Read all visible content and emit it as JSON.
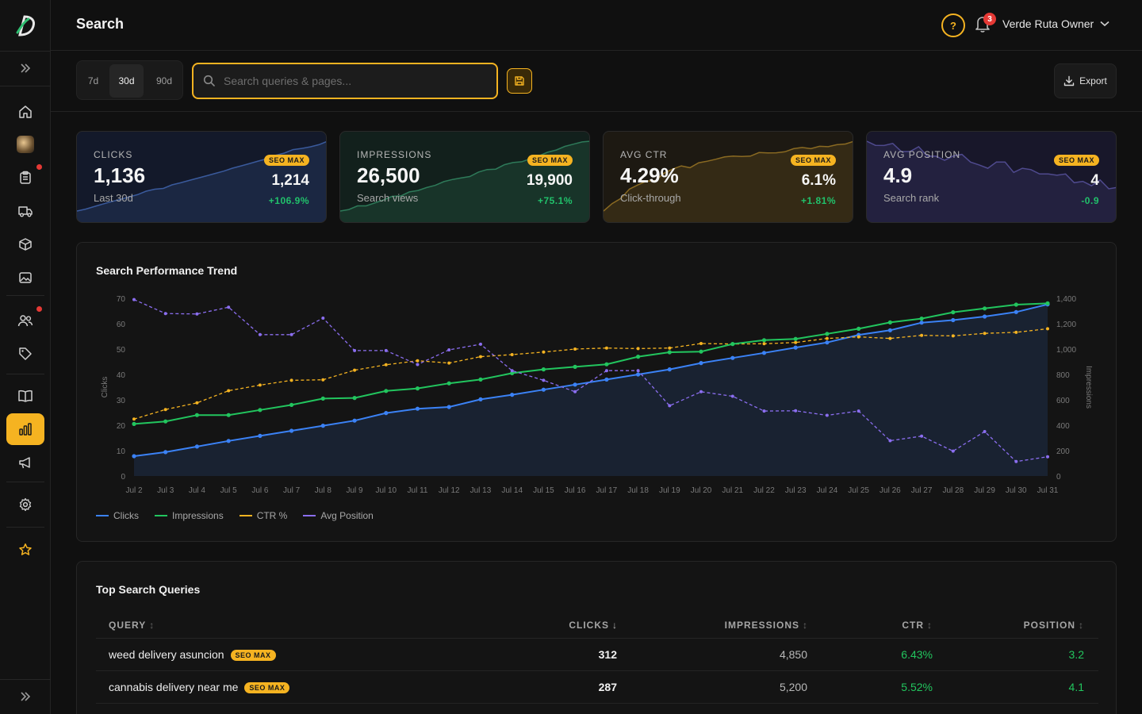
{
  "header": {
    "title": "Search",
    "help_glyph": "?",
    "notifications_count": "3",
    "user_name": "Verde Ruta Owner"
  },
  "toolbar": {
    "ranges": [
      {
        "label": "7d",
        "active": false
      },
      {
        "label": "30d",
        "active": true
      },
      {
        "label": "90d",
        "active": false
      }
    ],
    "search_placeholder": "Search queries & pages...",
    "search_value": "",
    "export_label": "Export"
  },
  "sidebar": {
    "items": [
      {
        "icon": "home-icon",
        "active": false
      },
      {
        "icon": "avatar-image",
        "active": false
      },
      {
        "icon": "clipboard-icon",
        "active": false,
        "dot": true
      },
      {
        "icon": "truck-icon",
        "active": false
      },
      {
        "icon": "box-icon",
        "active": false
      },
      {
        "icon": "image-icon",
        "active": false
      },
      {
        "icon": "users-icon",
        "active": false,
        "dot": true
      },
      {
        "icon": "tag-icon",
        "active": false
      },
      {
        "icon": "book-icon",
        "active": false
      },
      {
        "icon": "bar-chart-icon",
        "active": true
      },
      {
        "icon": "megaphone-icon",
        "active": false
      },
      {
        "icon": "gear-icon",
        "active": false
      },
      {
        "icon": "star-icon",
        "active": false
      }
    ],
    "colors": {
      "accent": "#f5b321",
      "dot": "#e53935"
    }
  },
  "kpis": [
    {
      "label": "CLICKS",
      "value": "1,136",
      "sub": "Last 30d",
      "badge": "SEO MAX",
      "seo_value": "1,214",
      "delta": "+106.9%",
      "bg": "#13192a",
      "line": "#3a5a9c"
    },
    {
      "label": "IMPRESSIONS",
      "value": "26,500",
      "sub": "Search views",
      "badge": "SEO MAX",
      "seo_value": "19,900",
      "delta": "+75.1%",
      "bg": "#12201c",
      "line": "#2e7a59"
    },
    {
      "label": "AVG CTR",
      "value": "4.29%",
      "sub": "Click-through",
      "badge": "SEO MAX",
      "seo_value": "6.1%",
      "delta": "+1.81%",
      "bg": "#1d1912",
      "line": "#8a6a22"
    },
    {
      "label": "AVG POSITION",
      "value": "4.9",
      "sub": "Search rank",
      "badge": "SEO MAX",
      "seo_value": "4",
      "delta": "-0.9",
      "bg": "#18172a",
      "line": "#4f4a8e"
    }
  ],
  "trend": {
    "title": "Search Performance Trend",
    "chart_data": {
      "type": "line",
      "x": [
        "Jul 2",
        "Jul 3",
        "Jul 4",
        "Jul 5",
        "Jul 6",
        "Jul 7",
        "Jul 8",
        "Jul 9",
        "Jul 10",
        "Jul 11",
        "Jul 12",
        "Jul 13",
        "Jul 14",
        "Jul 15",
        "Jul 16",
        "Jul 17",
        "Jul 18",
        "Jul 19",
        "Jul 20",
        "Jul 21",
        "Jul 22",
        "Jul 23",
        "Jul 24",
        "Jul 25",
        "Jul 26",
        "Jul 27",
        "Jul 28",
        "Jul 29",
        "Jul 30",
        "Jul 31"
      ],
      "ylabel": "Clicks",
      "y2label": "Impressions",
      "ylim": [
        0,
        70
      ],
      "y_ticks": [
        0,
        10,
        20,
        30,
        40,
        50,
        60,
        70
      ],
      "y2lim": [
        0,
        1400
      ],
      "y2_ticks": [
        "0",
        "200",
        "400",
        "600",
        "800",
        "1,000",
        "1,200",
        "1,400"
      ],
      "legend_position": "bottom-left",
      "series": [
        {
          "name": "Clicks",
          "axis": "left",
          "color": "#3b82f6",
          "dashed": false,
          "fill": true,
          "values": [
            7.8,
            9.4,
            11.6,
            13.8,
            15.8,
            17.8,
            19.8,
            21.8,
            24.8,
            26.5,
            27.2,
            30.2,
            32.0,
            34.0,
            36.0,
            38.0,
            40.0,
            42.0,
            44.5,
            46.5,
            48.5,
            50.6,
            52.6,
            55.6,
            57.4,
            60.4,
            61.4,
            62.8,
            64.6,
            67.6
          ]
        },
        {
          "name": "Impressions",
          "axis": "right",
          "color": "#22c55e",
          "dashed": false,
          "fill": false,
          "values": [
            410,
            430,
            480,
            480,
            520,
            560,
            610,
            615,
            670,
            690,
            730,
            760,
            810,
            840,
            860,
            880,
            940,
            975,
            980,
            1040,
            1070,
            1080,
            1120,
            1160,
            1210,
            1240,
            1290,
            1320,
            1350,
            1360
          ]
        },
        {
          "name": "CTR %",
          "axis": "left",
          "color": "#f5b321",
          "dashed": true,
          "fill": false,
          "values": [
            22.4,
            26.2,
            28.8,
            33.6,
            35.8,
            37.7,
            37.9,
            41.7,
            43.8,
            45.4,
            44.5,
            47.0,
            47.8,
            48.8,
            50.0,
            50.4,
            50.2,
            50.4,
            52.2,
            52.0,
            52.1,
            52.6,
            54.2,
            54.8,
            54.2,
            55.4,
            55.2,
            56.2,
            56.6,
            58.0
          ]
        },
        {
          "name": "Avg Position",
          "axis": "left",
          "color": "#8b6ef0",
          "dashed": true,
          "fill": false,
          "values": [
            69.5,
            64.0,
            63.8,
            66.5,
            55.7,
            55.7,
            62.2,
            49.4,
            49.4,
            43.9,
            49.7,
            51.9,
            41.5,
            37.7,
            33.2,
            41.5,
            41.5,
            27.7,
            33.2,
            31.4,
            25.6,
            25.7,
            23.9,
            25.6,
            13.9,
            15.7,
            9.8,
            17.5,
            5.7,
            7.6
          ]
        }
      ]
    }
  },
  "queries": {
    "title": "Top Search Queries",
    "columns": {
      "query": "QUERY",
      "clicks": "CLICKS",
      "impressions": "IMPRESSIONS",
      "ctr": "CTR",
      "position": "POSITION"
    },
    "rows": [
      {
        "query": "weed delivery asuncion",
        "badge": "SEO MAX",
        "clicks": "312",
        "impressions": "4,850",
        "ctr": "6.43%",
        "position": "3.2"
      },
      {
        "query": "cannabis delivery near me",
        "badge": "SEO MAX",
        "clicks": "287",
        "impressions": "5,200",
        "ctr": "5.52%",
        "position": "4.1"
      }
    ]
  }
}
